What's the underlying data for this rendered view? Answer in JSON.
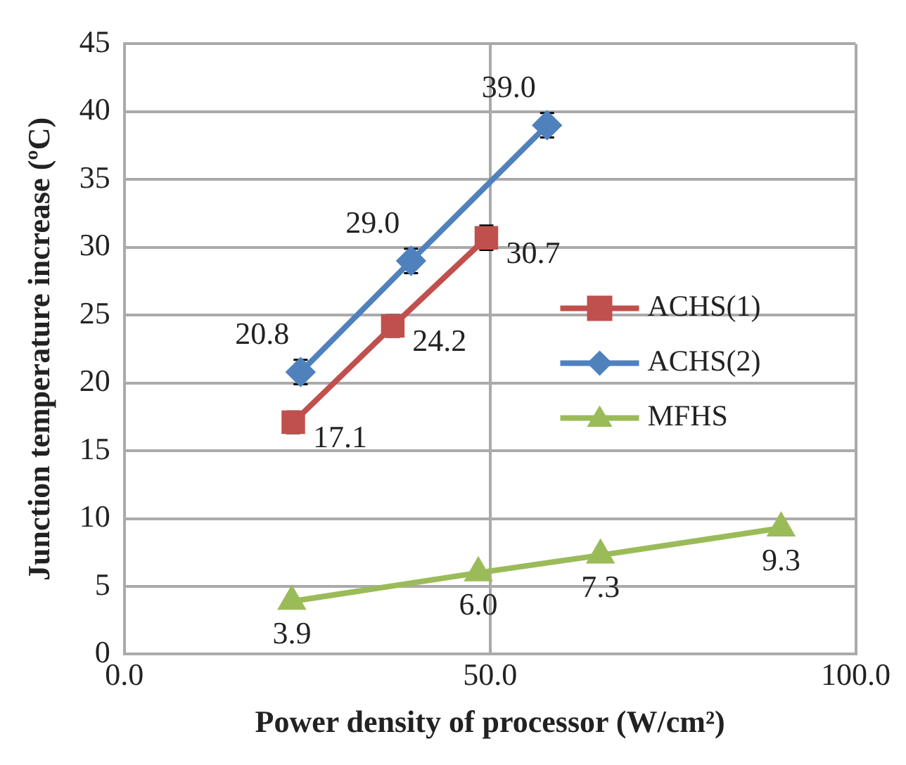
{
  "chart_data": {
    "type": "line",
    "xlabel": "Power density of processor (W/cm²)",
    "ylabel": "Junction temperature increase (ºC)",
    "xlim": [
      0,
      100
    ],
    "xticks": [
      {
        "value": 0,
        "label": "0.0"
      },
      {
        "value": 50,
        "label": "50.0"
      },
      {
        "value": 100,
        "label": "100.0"
      }
    ],
    "ylim": [
      0,
      45
    ],
    "yticks": [
      0,
      5,
      10,
      15,
      20,
      25,
      30,
      35,
      40,
      45
    ],
    "grid": true,
    "legend": "right",
    "line_style": "solid",
    "series": [
      {
        "name": "ACHS(1)",
        "color": "#c0504d",
        "marker": "square",
        "x": [
          23.1,
          36.7,
          49.5
        ],
        "values": [
          17.1,
          24.2,
          30.7
        ],
        "value_labels": [
          "17.1",
          "24.2",
          "30.7"
        ],
        "errors": [
          0.8,
          0.8,
          0.9
        ]
      },
      {
        "name": "ACHS(2)",
        "color": "#4f81bd",
        "marker": "diamond",
        "x": [
          24.1,
          39.2,
          57.8
        ],
        "values": [
          20.8,
          29.0,
          39.0
        ],
        "value_labels": [
          "20.8",
          "29.0",
          "39.0"
        ],
        "errors": [
          0.9,
          0.9,
          0.9
        ]
      },
      {
        "name": "MFHS",
        "color": "#9bbb59",
        "marker": "triangle",
        "x": [
          22.9,
          48.4,
          65.1,
          89.8
        ],
        "values": [
          3.9,
          6.0,
          7.3,
          9.3
        ],
        "value_labels": [
          "3.9",
          "6.0",
          "7.3",
          "9.3"
        ]
      }
    ]
  }
}
